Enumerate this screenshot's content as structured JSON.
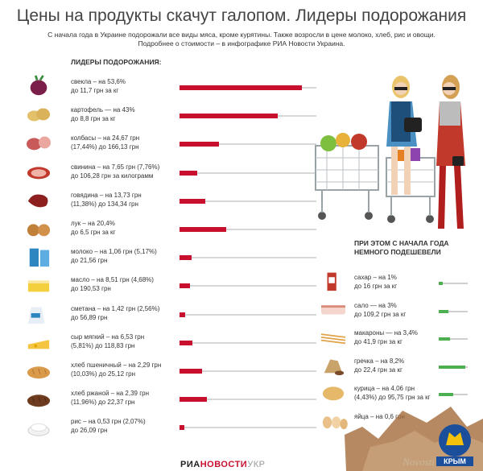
{
  "header": {
    "title": "Цены на продукты скачут галопом. Лидеры подорожания",
    "subtitle_line1": "С начала года в Украине подорожали все виды мяса, кроме курятины. Также возросли в цене молоко, хлеб, рис и овощи.",
    "subtitle_line2": "Подробнее о стоимости – в инфографике РИА Новости Украина."
  },
  "leaders": {
    "heading": "ЛИДЕРЫ ПОДОРОЖАНИЯ:",
    "items": [
      {
        "l1": "свекла – на 53,6%",
        "l2": "до 11,7 грн за кг",
        "icon": "beet-icon"
      },
      {
        "l1": "картофель — на 43%",
        "l2": "до 8,8 грн за кг",
        "icon": "potato-icon"
      },
      {
        "l1": "колбасы – на 24,67 грн",
        "l2": "(17,44%) до 166,13 грн",
        "icon": "sausage-icon"
      },
      {
        "l1": "свинина – на 7,65 грн (7,76%)",
        "l2": "до 106,28 грн за килограмм",
        "icon": "pork-icon"
      },
      {
        "l1": "говядина – на 13,73 грн",
        "l2": "(11,38%) до 134,34 грн",
        "icon": "beef-icon"
      },
      {
        "l1": "лук – на 20,4%",
        "l2": "до 6,5 грн за кг",
        "icon": "onion-icon"
      },
      {
        "l1": "молоко – на 1,06 грн (5,17%)",
        "l2": "до 21,56 грн",
        "icon": "milk-icon"
      },
      {
        "l1": "масло – на 8,51 грн (4,68%)",
        "l2": "до 190,53 грн",
        "icon": "butter-icon"
      },
      {
        "l1": "сметана – на 1,42 грн (2,56%)",
        "l2": "до 56,89 грн",
        "icon": "sour-cream-icon"
      },
      {
        "l1": "сыр мягкий – на 6,53 грн",
        "l2": "(5,81%) до 118,83 грн",
        "icon": "cheese-icon"
      },
      {
        "l1": "хлеб пшеничный – на 2,29 грн",
        "l2": "(10,03%) до 25,12 грн",
        "icon": "wheat-bread-icon"
      },
      {
        "l1": "хлеб ржаной – на 2,39 грн",
        "l2": "(11,96%) до 22,37 грн",
        "icon": "rye-bread-icon"
      },
      {
        "l1": "рис – на 0,53 грн (2,07%)",
        "l2": "до 26,09 грн",
        "icon": "rice-icon"
      }
    ]
  },
  "cheaper": {
    "heading_l1": "ПРИ ЭТОМ С НАЧАЛА ГОДА",
    "heading_l2": "НЕМНОГО ПОДЕШЕВЕЛИ",
    "items": [
      {
        "l1": "сахар – на 1%",
        "l2": "до 16 грн за кг",
        "icon": "sugar-icon"
      },
      {
        "l1": "сало — на 3%",
        "l2": "до 109,2 грн за кг",
        "icon": "salo-icon"
      },
      {
        "l1": "макароны — на 3,4%",
        "l2": "до 41,9 грн за кг",
        "icon": "pasta-icon"
      },
      {
        "l1": "гречка – на 8,2%",
        "l2": "до 22,4 грн за кг",
        "icon": "buckwheat-icon"
      },
      {
        "l1": "курица – на 4,06 грн",
        "l2": "(4,43%) до 95,75 грн за кг",
        "icon": "chicken-icon"
      },
      {
        "l1": "яйца – на 0,6 грн",
        "l2": "",
        "icon": "eggs-icon"
      }
    ]
  },
  "footer": {
    "ria_a": "РИА",
    "ria_b": "НОВОСТИ",
    "ria_c": "УКР",
    "watermark": "Novosti",
    "logo_text": "КРЫМ"
  },
  "colors": {
    "bar": "#c8102e",
    "cheaper_bar": "#4caf50",
    "track": "#d7d7d7"
  },
  "chart_data": [
    {
      "type": "bar",
      "orientation": "horizontal",
      "title": "ЛИДЕРЫ ПОДОРОЖАНИЯ:",
      "categories": [
        "свекла",
        "картофель",
        "колбасы",
        "свинина",
        "говядина",
        "лук",
        "молоко",
        "масло",
        "сметана",
        "сыр мягкий",
        "хлеб пшеничный",
        "хлеб ржаной",
        "рис"
      ],
      "values": [
        53.6,
        43,
        17.44,
        7.76,
        11.38,
        20.4,
        5.17,
        4.68,
        2.56,
        5.81,
        10.03,
        11.96,
        2.07
      ],
      "unit": "%",
      "xlim": [
        0,
        60
      ]
    },
    {
      "type": "bar",
      "orientation": "horizontal",
      "title": "ПРИ ЭТОМ С НАЧАЛА ГОДА НЕМНОГО ПОДЕШЕВЕЛИ",
      "categories": [
        "сахар",
        "сало",
        "макароны",
        "гречка",
        "курица",
        "яйца"
      ],
      "values": [
        1,
        3,
        3.4,
        8.2,
        4.43,
        null
      ],
      "unit": "%",
      "xlim": [
        0,
        9
      ]
    }
  ]
}
